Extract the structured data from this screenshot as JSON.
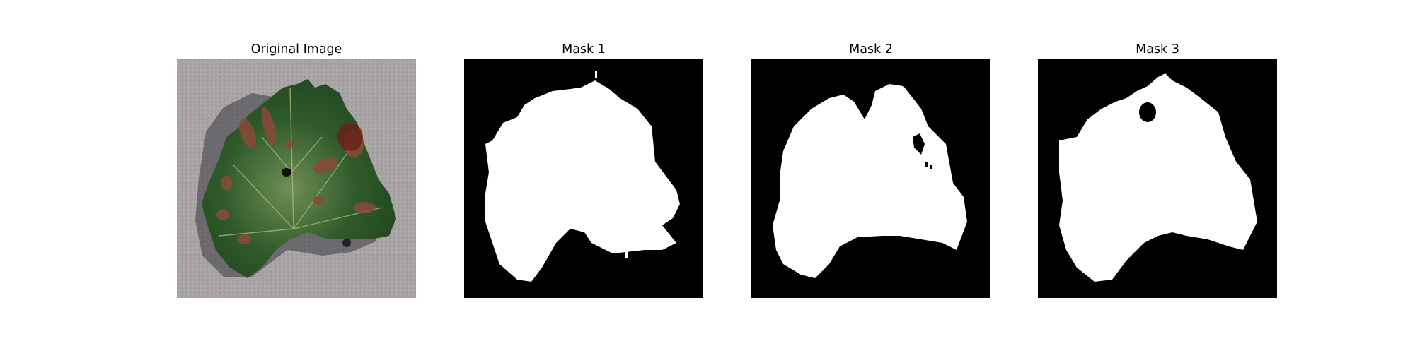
{
  "figure": {
    "panels": [
      {
        "title": "Original Image",
        "content": "photo"
      },
      {
        "title": "Mask 1",
        "content": "mask"
      },
      {
        "title": "Mask 2",
        "content": "mask"
      },
      {
        "title": "Mask 3",
        "content": "mask"
      }
    ]
  },
  "colors": {
    "background": "#ffffff",
    "mask_background": "#000000",
    "mask_foreground": "#ffffff",
    "stone_surface": "#a6a1a3",
    "leaf_green": "#2f5a2a",
    "lesion_brown": "#8a4a3a"
  }
}
